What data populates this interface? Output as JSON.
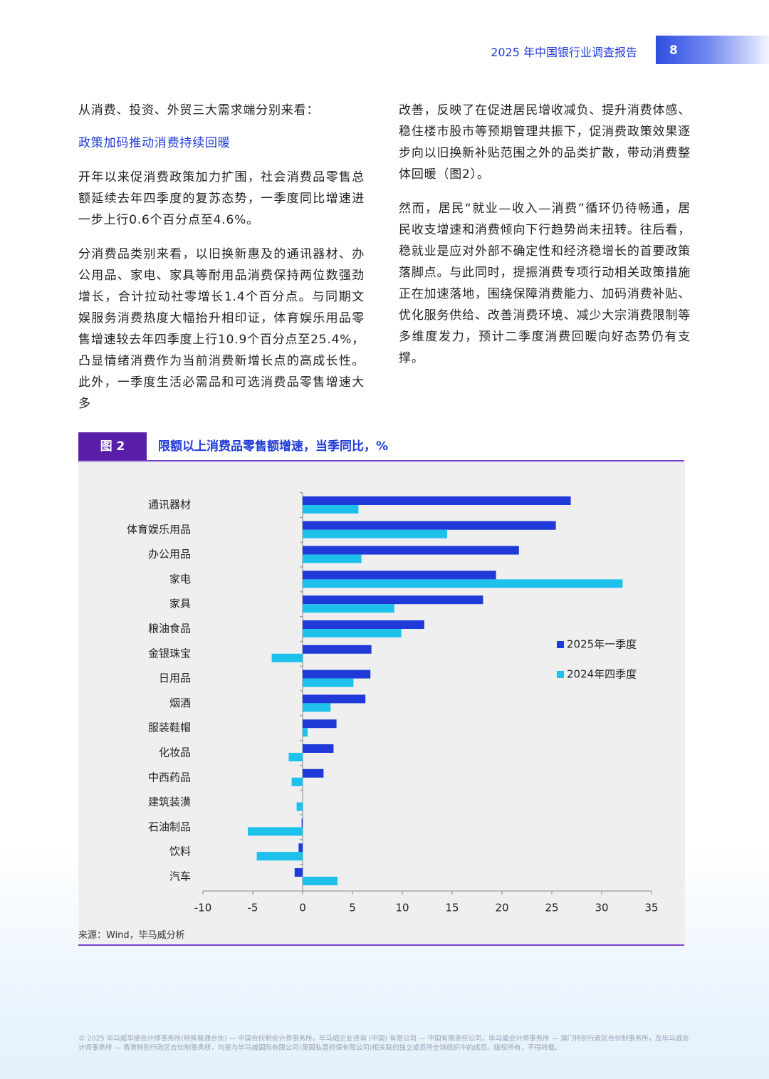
{
  "header": {
    "title": "2025 年中国银行业调查报告",
    "page": "8"
  },
  "body": {
    "intro": "从消费、投资、外贸三大需求端分别来看：",
    "subheading": "政策加码推动消费持续回暖",
    "paragraphs": [
      "开年以来促消费政策加力扩围，社会消费品零售总额延续去年四季度的复苏态势，一季度同比增速进一步上行0.6个百分点至4.6%。",
      "分消费品类别来看，以旧换新惠及的通讯器材、办公用品、家电、家具等耐用品消费保持两位数强劲增长，合计拉动社零增长1.4个百分点。与同期文娱服务消费热度大幅抬升相印证，体育娱乐用品零售增速较去年四季度上行10.9个百分点至25.4%，凸显情绪消费作为当前消费新增长点的高成长性。此外，一季度生活必需品和可选消费品零售增速大多",
      "改善，反映了在促进居民增收减负、提升消费体感、稳住楼市股市等预期管理共振下，促消费政策效果逐步向以旧换新补贴范围之外的品类扩散，带动消费整体回暖（图2）。",
      "然而，居民“就业—收入—消费”循环仍待畅通，居民收支增速和消费倾向下行趋势尚未扭转。往后看，稳就业是应对外部不确定性和经济稳增长的首要政策落脚点。与此同时，提振消费专项行动相关政策措施正在加速落地，围绕保障消费能力、加码消费补贴、优化服务供给、改善消费环境、减少大宗消费限制等多维度发力，预计二季度消费回暖向好态势仍有支撑。"
    ]
  },
  "figure": {
    "label": "图 2",
    "caption": "限额以上消费品零售额增速，当季同比，%",
    "source": "来源：Wind，毕马威分析"
  },
  "chart_data": {
    "type": "bar",
    "orientation": "horizontal",
    "categories": [
      "通讯器材",
      "体育娱乐用品",
      "办公用品",
      "家电",
      "家具",
      "粮油食品",
      "金银珠宝",
      "日用品",
      "烟酒",
      "服装鞋帽",
      "化妆品",
      "中西药品",
      "建筑装潢",
      "石油制品",
      "饮料",
      "汽车"
    ],
    "series": [
      {
        "name": "2025年一季度",
        "color": "#1f3ad8",
        "values": [
          26.9,
          25.4,
          21.7,
          19.4,
          18.1,
          12.2,
          6.9,
          6.8,
          6.3,
          3.4,
          3.1,
          2.1,
          0,
          -0.1,
          -0.4,
          -0.8
        ]
      },
      {
        "name": "2024年四季度",
        "color": "#1ec0ec",
        "values": [
          5.6,
          14.5,
          5.9,
          32.1,
          9.2,
          9.9,
          -3.1,
          5.1,
          2.8,
          0.5,
          -1.4,
          -1.1,
          -0.6,
          -5.5,
          -4.6,
          3.5
        ]
      }
    ],
    "xlim": [
      -10,
      35
    ],
    "xticks": [
      -10,
      -5,
      0,
      5,
      10,
      15,
      20,
      25,
      30,
      35
    ],
    "legend": "right"
  },
  "footer": {
    "text": "© 2025 毕马威华振会计师事务所(特殊普通合伙) — 中国合伙制会计师事务所，毕马威企业咨询 (中国) 有限公司 — 中国有限责任公司，毕马威会计师事务所 — 澳门特别行政区合伙制事务所，及毕马威会计师事务所 — 香港特别行政区合伙制事务所，均是与毕马威国际有限公司(英国私营担保有限公司)相关联的独立成员所全球组织中的成员。版权所有，不得转载。"
  }
}
